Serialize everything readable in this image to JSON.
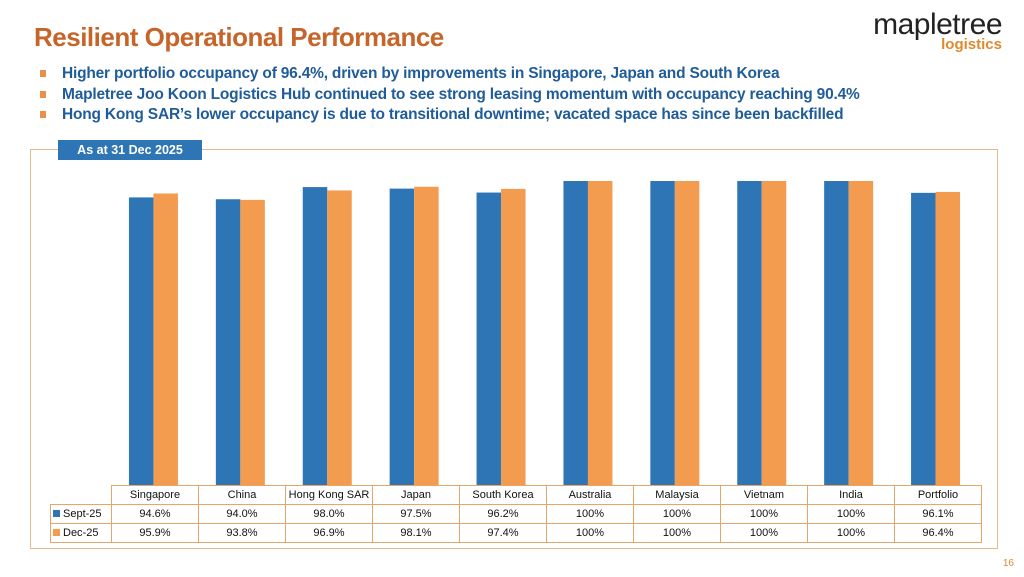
{
  "title": "Resilient Operational Performance",
  "logo": {
    "main": "mapletree",
    "sub": "logistics"
  },
  "bullets": [
    "Higher portfolio occupancy of 96.4%, driven by improvements in Singapore, Japan and South Korea",
    "Mapletree Joo Koon Logistics Hub continued to see strong leasing momentum with occupancy reaching 90.4%",
    "Hong Kong SAR’s lower occupancy is due to transitional downtime; vacated space has since been backfilled"
  ],
  "badge": "As at 31 Dec 2025",
  "page_number": "16",
  "chart_data": {
    "type": "bar",
    "categories": [
      "Singapore",
      "China",
      "Hong Kong SAR",
      "Japan",
      "South Korea",
      "Australia",
      "Malaysia",
      "Vietnam",
      "India",
      "Portfolio"
    ],
    "series": [
      {
        "name": "Sept-25",
        "color": "#2E75B6",
        "values": [
          94.6,
          94.0,
          98.0,
          97.5,
          96.2,
          100,
          100,
          100,
          100,
          96.1
        ],
        "labels": [
          "94.6%",
          "94.0%",
          "98.0%",
          "97.5%",
          "96.2%",
          "100%",
          "100%",
          "100%",
          "100%",
          "96.1%"
        ]
      },
      {
        "name": "Dec-25",
        "color": "#F39C50",
        "values": [
          95.9,
          93.8,
          96.9,
          98.1,
          97.4,
          100,
          100,
          100,
          100,
          96.4
        ],
        "labels": [
          "95.9%",
          "93.8%",
          "96.9%",
          "98.1%",
          "97.4%",
          "100%",
          "100%",
          "100%",
          "100%",
          "96.4%"
        ]
      }
    ],
    "ylim": [
      0,
      100
    ],
    "grid": false,
    "legend": "data-table"
  }
}
